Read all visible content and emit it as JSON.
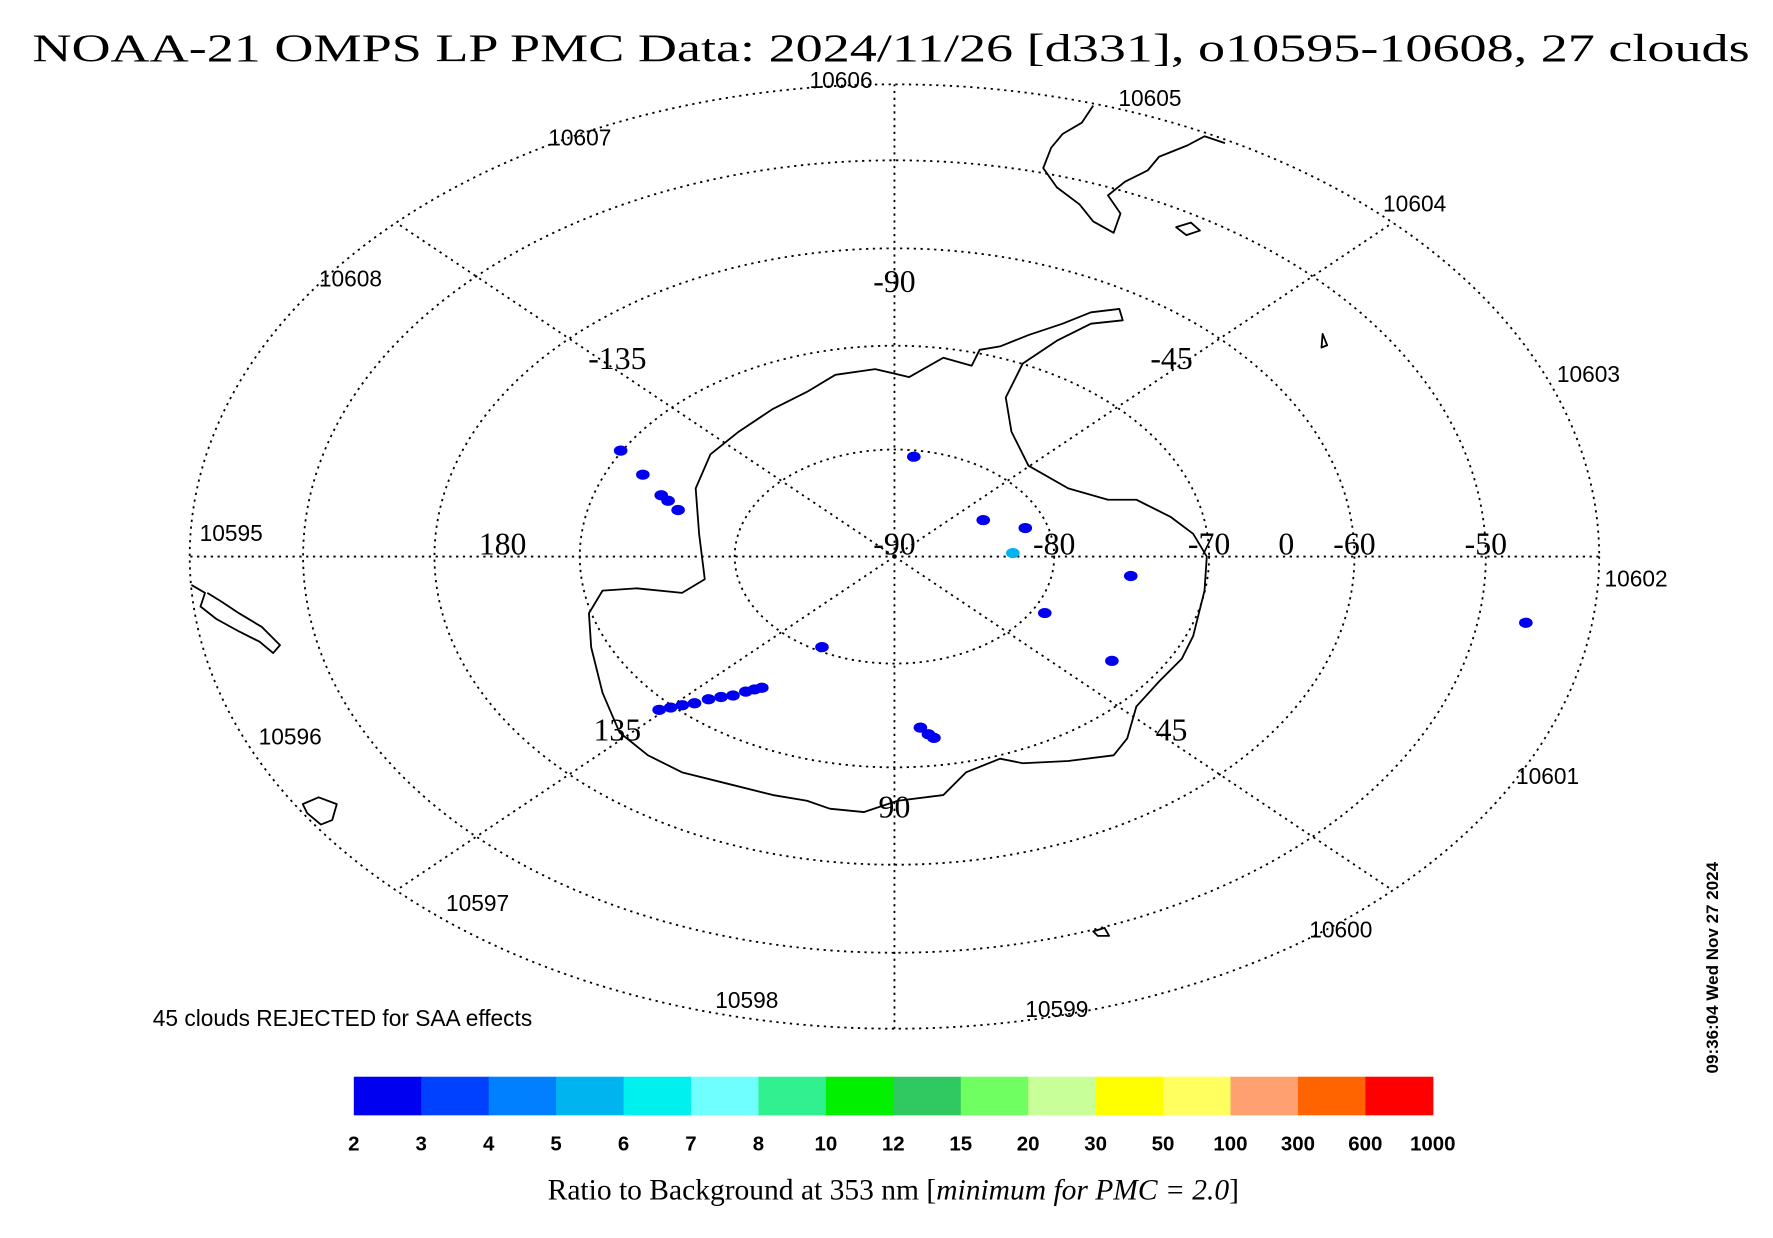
{
  "title": "NOAA-21 OMPS LP PMC Data: 2024/11/26 [d331], o10595-10608, 27 clouds",
  "orbits": [
    "10595",
    "10596",
    "10597",
    "10598",
    "10599",
    "10600",
    "10601",
    "10602",
    "10603",
    "10604",
    "10605",
    "10606",
    "10607",
    "10608"
  ],
  "lat_range": [
    -90,
    -40
  ],
  "lat_labels": [
    -90,
    -80,
    -70,
    -60,
    -50
  ],
  "lon_labels": [
    0,
    -45,
    -90,
    -135,
    180,
    135,
    90,
    45
  ],
  "clouds": [
    {
      "lat": -69.9,
      "lon": -150.0,
      "value": 2.5
    },
    {
      "lat": -72.3,
      "lon": -154.1,
      "value": 2.5
    },
    {
      "lat": -74.2,
      "lon": -158.6,
      "value": 2.5
    },
    {
      "lat": -74.8,
      "lon": -159.8,
      "value": 2.5
    },
    {
      "lat": -75.7,
      "lon": -162.2,
      "value": 2.5
    },
    {
      "lat": -80.6,
      "lon": -82.6,
      "value": 2.5
    },
    {
      "lat": -83.5,
      "lon": -31.5,
      "value": 2.5
    },
    {
      "lat": -81.4,
      "lon": -18.0,
      "value": 2.5
    },
    {
      "lat": -82.6,
      "lon": -2.5,
      "value": 5.5
    },
    {
      "lat": -75.0,
      "lon": 7.0,
      "value": 2.5
    },
    {
      "lat": -79.2,
      "lon": 29.3,
      "value": 2.5
    },
    {
      "lat": -73.1,
      "lon": 35.6,
      "value": 2.5
    },
    {
      "lat": -46.0,
      "lon": 8.9,
      "value": 2.5
    },
    {
      "lat": -80.4,
      "lon": 118.2,
      "value": 2.5
    },
    {
      "lat": -69.1,
      "lon": 135.8,
      "value": 2.5
    },
    {
      "lat": -69.8,
      "lon": 134.8,
      "value": 2.5
    },
    {
      "lat": -70.5,
      "lon": 133.7,
      "value": 2.5
    },
    {
      "lat": -71.2,
      "lon": 132.4,
      "value": 2.5
    },
    {
      "lat": -72.1,
      "lon": 131.1,
      "value": 2.5
    },
    {
      "lat": -72.8,
      "lon": 129.6,
      "value": 2.5
    },
    {
      "lat": -73.4,
      "lon": 127.9,
      "value": 2.5
    },
    {
      "lat": -74.2,
      "lon": 126.4,
      "value": 2.5
    },
    {
      "lat": -74.7,
      "lon": 125.2,
      "value": 2.5
    },
    {
      "lat": -75.1,
      "lon": 124.1,
      "value": 2.5
    },
    {
      "lat": -73.8,
      "lon": 84.2,
      "value": 2.5
    },
    {
      "lat": -73.1,
      "lon": 82.7,
      "value": 2.5
    },
    {
      "lat": -72.7,
      "lon": 81.7,
      "value": 2.5
    }
  ],
  "rejected_note": "45 clouds REJECTED for SAA effects",
  "colorbar": {
    "bounds": [
      2,
      3,
      4,
      5,
      6,
      7,
      8,
      10,
      12,
      15,
      20,
      30,
      50,
      100,
      300,
      600,
      1000
    ],
    "colors": [
      "#0000f0",
      "#0040ff",
      "#0080ff",
      "#00b4f0",
      "#00f0f0",
      "#70ffff",
      "#30f090",
      "#00f000",
      "#30c860",
      "#70ff60",
      "#c8ff98",
      "#ffff00",
      "#ffff60",
      "#ffa070",
      "#ff6400",
      "#ff0000"
    ],
    "title_start": "Ratio to Background at 353 nm [",
    "title_italic": "minimum for PMC = 2.0",
    "title_end": "]"
  },
  "timestamp": "09:36:04 Wed Nov 27 2024"
}
